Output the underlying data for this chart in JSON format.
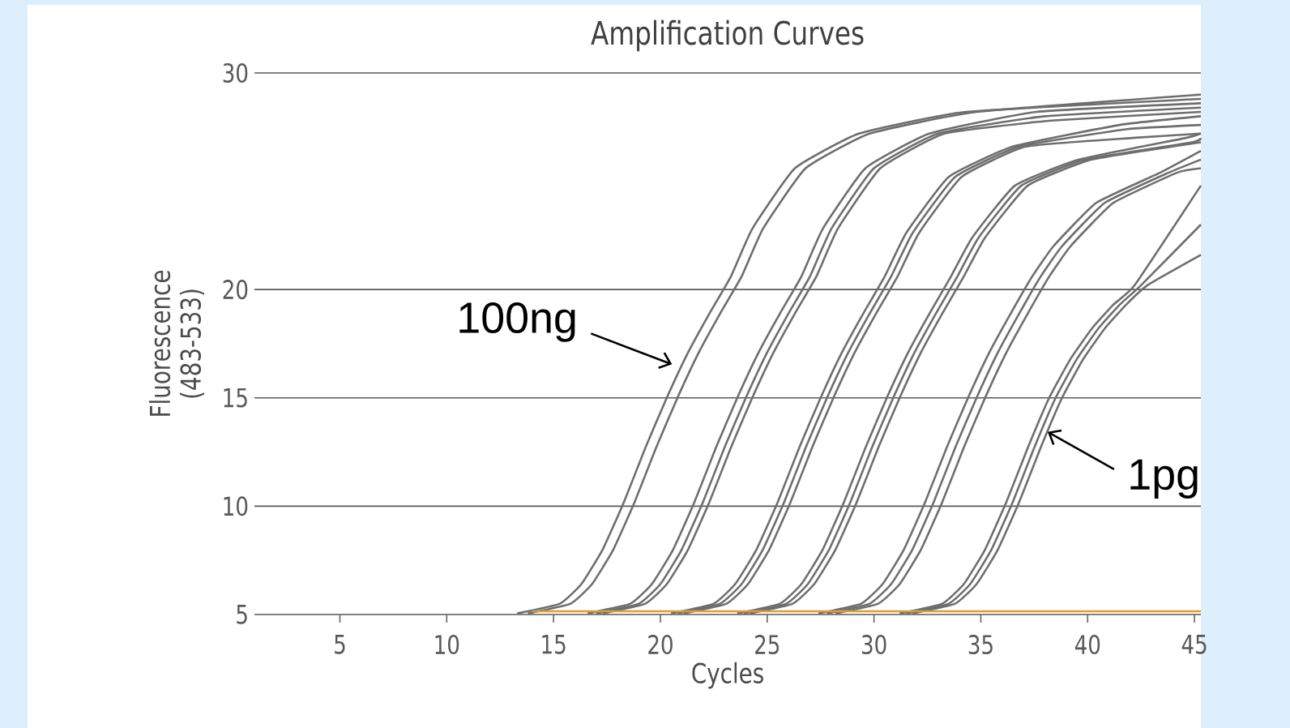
{
  "chart_data": {
    "type": "line",
    "title": "Amplification Curves",
    "xlabel": "Cycles",
    "ylabel": "Fluorescence (483-533)",
    "xlim": [
      1,
      45.3
    ],
    "xticks": [
      5,
      10,
      15,
      20,
      25,
      30,
      35,
      40,
      45
    ],
    "ylim": [
      5,
      30
    ],
    "yticks": [
      5,
      10,
      15,
      20,
      30
    ],
    "grid": "y",
    "line_style": "solid",
    "annotations": [
      {
        "text": "100ng",
        "x": 21.0,
        "y": 16.4
      },
      {
        "text": "1pg",
        "x": 37.9,
        "y": 13.5
      }
    ],
    "series": [
      {
        "color": "#6e6e6e",
        "x": [
          13.3,
          15.3,
          16.3,
          17.3,
          18.3,
          19.3,
          20.3,
          21.3,
          22.3,
          23.3,
          24.3,
          26.3,
          29.3,
          34.3,
          45.3
        ],
        "values": [
          5.05,
          5.5,
          6.4,
          8.0,
          10.2,
          12.7,
          15.0,
          17.1,
          18.9,
          20.6,
          22.8,
          25.6,
          27.2,
          28.2,
          28.8
        ]
      },
      {
        "color": "#6e6e6e",
        "x": [
          13.8,
          15.8,
          16.8,
          17.8,
          18.8,
          19.8,
          20.8,
          21.8,
          22.8,
          23.8,
          24.8,
          26.8,
          29.8,
          34.8,
          45.3
        ],
        "values": [
          5.05,
          5.5,
          6.4,
          8.0,
          10.2,
          12.7,
          15.0,
          17.1,
          18.9,
          20.6,
          22.8,
          25.6,
          27.2,
          28.2,
          29.0
        ]
      },
      {
        "color": "#6e6e6e",
        "x": [
          16.6,
          18.6,
          19.6,
          20.6,
          21.6,
          22.6,
          23.6,
          24.6,
          25.6,
          26.6,
          27.6,
          29.6,
          32.6,
          37.6,
          45.3
        ],
        "values": [
          5.05,
          5.5,
          6.4,
          8.0,
          10.2,
          12.7,
          15.0,
          17.1,
          18.9,
          20.6,
          22.8,
          25.6,
          27.2,
          28.2,
          28.6
        ]
      },
      {
        "color": "#6e6e6e",
        "x": [
          17,
          19,
          20,
          21,
          22,
          23,
          24,
          25,
          26,
          27,
          28,
          30,
          33,
          38,
          45.3
        ],
        "values": [
          5.05,
          5.5,
          6.4,
          8.0,
          10.2,
          12.7,
          15.0,
          17.1,
          18.9,
          20.6,
          22.8,
          25.6,
          27.2,
          28.0,
          28.4
        ]
      },
      {
        "color": "#6e6e6e",
        "x": [
          17.3,
          19.3,
          20.3,
          21.3,
          22.3,
          23.3,
          24.3,
          25.3,
          26.3,
          27.3,
          28.3,
          30.3,
          33.3,
          38.3,
          45.3
        ],
        "values": [
          5.05,
          5.5,
          6.4,
          8.0,
          10.2,
          12.7,
          15.0,
          17.1,
          18.9,
          20.6,
          22.8,
          25.6,
          27.2,
          27.8,
          28.2
        ]
      },
      {
        "color": "#6e6e6e",
        "x": [
          20.5,
          22.5,
          23.5,
          24.5,
          25.5,
          26.5,
          27.5,
          28.5,
          29.5,
          30.5,
          31.5,
          33.5,
          36.5,
          41.5,
          45.3
        ],
        "values": [
          5.05,
          5.5,
          6.4,
          8.0,
          10.2,
          12.7,
          15.0,
          17.1,
          18.9,
          20.6,
          22.6,
          25.2,
          26.6,
          27.6,
          28.0
        ]
      },
      {
        "color": "#6e6e6e",
        "x": [
          20.8,
          22.8,
          23.8,
          24.8,
          25.8,
          26.8,
          27.8,
          28.8,
          29.8,
          30.8,
          31.8,
          33.8,
          36.8,
          41.8,
          45.3
        ],
        "values": [
          5.05,
          5.5,
          6.4,
          8.0,
          10.2,
          12.7,
          15.0,
          17.1,
          18.9,
          20.6,
          22.6,
          25.2,
          26.6,
          27.4,
          27.6
        ]
      },
      {
        "color": "#6e6e6e",
        "x": [
          21.1,
          23.1,
          24.1,
          25.1,
          26.1,
          27.1,
          28.1,
          29.1,
          30.1,
          31.1,
          32.1,
          34.1,
          37.1,
          42.1,
          45.3
        ],
        "values": [
          5.05,
          5.5,
          6.4,
          8.0,
          10.2,
          12.7,
          15.0,
          17.1,
          18.9,
          20.6,
          22.6,
          25.2,
          26.6,
          27.0,
          27.2
        ]
      },
      {
        "color": "#6e6e6e",
        "x": [
          23.6,
          25.6,
          26.6,
          27.6,
          28.6,
          29.6,
          30.6,
          31.6,
          32.6,
          33.6,
          34.6,
          36.6,
          39.6,
          44.6,
          45.3
        ],
        "values": [
          5.05,
          5.5,
          6.4,
          8.0,
          10.2,
          12.7,
          15.0,
          17.1,
          18.9,
          20.6,
          22.4,
          24.8,
          26.0,
          27.0,
          27.2
        ]
      },
      {
        "color": "#6e6e6e",
        "x": [
          23.9,
          25.9,
          26.9,
          27.9,
          28.9,
          29.9,
          30.9,
          31.9,
          32.9,
          33.9,
          34.9,
          36.9,
          39.9,
          44.9,
          45.3
        ],
        "values": [
          5.05,
          5.5,
          6.4,
          8.0,
          10.2,
          12.7,
          15.0,
          17.1,
          18.9,
          20.6,
          22.4,
          24.8,
          26.0,
          26.8,
          27.0
        ]
      },
      {
        "color": "#6e6e6e",
        "x": [
          24.2,
          26.2,
          27.2,
          28.2,
          29.2,
          30.2,
          31.2,
          32.2,
          33.2,
          34.2,
          35.2,
          37.2,
          40.2,
          45.3
        ],
        "values": [
          5.05,
          5.5,
          6.4,
          8.0,
          10.2,
          12.7,
          15.0,
          17.1,
          18.9,
          20.6,
          22.4,
          24.8,
          26.0,
          26.8
        ]
      },
      {
        "color": "#6e6e6e",
        "x": [
          27.4,
          29.4,
          30.4,
          31.4,
          32.4,
          33.4,
          34.4,
          35.4,
          36.4,
          37.4,
          38.4,
          40.4,
          43.4,
          45.3
        ],
        "values": [
          5.05,
          5.5,
          6.4,
          8.0,
          10.2,
          12.7,
          15.0,
          17.1,
          18.9,
          20.6,
          22.0,
          24.0,
          25.4,
          26.4
        ]
      },
      {
        "color": "#6e6e6e",
        "x": [
          27.8,
          29.8,
          30.8,
          31.8,
          32.8,
          33.8,
          34.8,
          35.8,
          36.8,
          37.8,
          38.8,
          40.8,
          43.8,
          45.3
        ],
        "values": [
          5.05,
          5.5,
          6.4,
          8.0,
          10.2,
          12.7,
          15.0,
          17.1,
          18.9,
          20.6,
          22.0,
          24.0,
          25.4,
          26.0
        ]
      },
      {
        "color": "#6e6e6e",
        "x": [
          28.2,
          30.2,
          31.2,
          32.2,
          33.2,
          34.2,
          35.2,
          36.2,
          37.2,
          38.2,
          39.2,
          41.2,
          44.2,
          45.3
        ],
        "values": [
          5.05,
          5.5,
          6.4,
          8.0,
          10.2,
          12.7,
          15.0,
          17.1,
          18.9,
          20.6,
          22.0,
          24.0,
          25.4,
          25.6
        ]
      },
      {
        "color": "#6e6e6e",
        "x": [
          31.2,
          33.2,
          34.2,
          35.2,
          36.2,
          37.2,
          38.2,
          39.2,
          40.2,
          41.2,
          42.2,
          45.3
        ],
        "values": [
          5.05,
          5.5,
          6.4,
          8.0,
          10.2,
          12.7,
          15.0,
          16.8,
          18.2,
          19.3,
          20.2,
          24.8
        ]
      },
      {
        "color": "#6e6e6e",
        "x": [
          31.5,
          33.5,
          34.5,
          35.5,
          36.5,
          37.5,
          38.5,
          39.5,
          40.5,
          41.5,
          42.5,
          45.3
        ],
        "values": [
          5.05,
          5.5,
          6.4,
          8.0,
          10.2,
          12.7,
          15.0,
          16.8,
          18.2,
          19.3,
          20.2,
          23.0
        ]
      },
      {
        "color": "#6e6e6e",
        "x": [
          31.8,
          33.8,
          34.8,
          35.8,
          36.8,
          37.8,
          38.8,
          39.8,
          40.8,
          41.8,
          42.8,
          45.3
        ],
        "values": [
          5.05,
          5.5,
          6.4,
          8.0,
          10.2,
          12.7,
          15.0,
          16.8,
          18.2,
          19.3,
          20.2,
          21.6
        ]
      },
      {
        "color": "#d9a030",
        "x": [
          14,
          45.3
        ],
        "values": [
          5.15,
          5.15
        ]
      }
    ]
  }
}
